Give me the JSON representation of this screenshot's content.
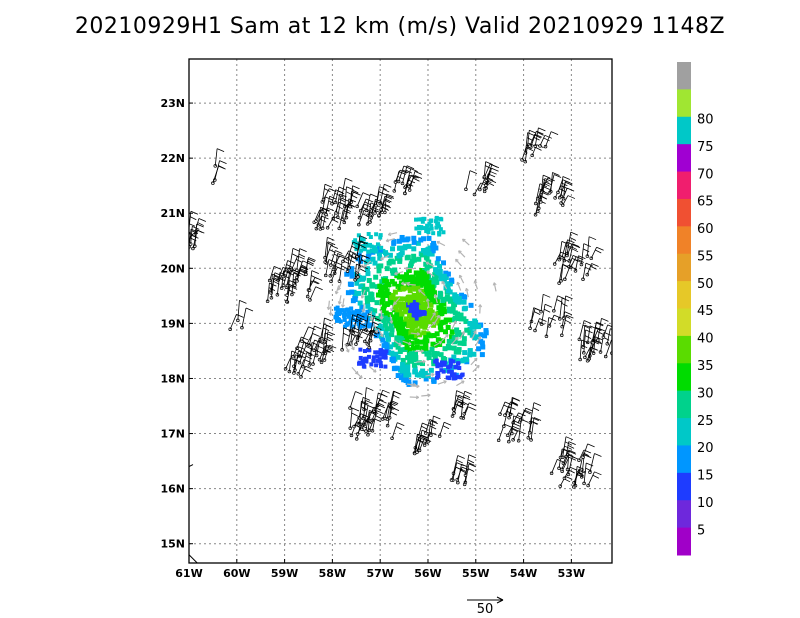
{
  "title": "20210929H1 Sam at 12 km (m/s) Valid 20210929 1148Z",
  "map": {
    "lat_labels": [
      "23N",
      "22N",
      "21N",
      "20N",
      "19N",
      "18N",
      "17N",
      "16N",
      "15N"
    ],
    "lat_values": [
      23,
      22,
      21,
      20,
      19,
      18,
      17,
      16,
      15
    ],
    "lon_labels": [
      "61W",
      "60W",
      "59W",
      "58W",
      "57W",
      "56W",
      "55W",
      "54W",
      "53W"
    ],
    "lon_values": [
      -61,
      -60,
      -59,
      -58,
      -57,
      -56,
      -55,
      -54,
      -53
    ],
    "lon_range": [
      -61,
      -52.15
    ],
    "lat_range": [
      14.65,
      23.8
    ],
    "grid": "dotted"
  },
  "colorbar": {
    "labels": [
      "5",
      "10",
      "15",
      "20",
      "25",
      "30",
      "35",
      "40",
      "45",
      "50",
      "55",
      "60",
      "65",
      "70",
      "75",
      "80"
    ],
    "colors": [
      "#a000c8",
      "#6e28dc",
      "#1e3cff",
      "#0096ff",
      "#00c8c8",
      "#00d28c",
      "#00dc00",
      "#5adc00",
      "#d2dc28",
      "#e6c828",
      "#e6a028",
      "#f08228",
      "#f05032",
      "#f01e6e",
      "#a000d2",
      "#00c8c8",
      "#a0e632",
      "#a0a0a0"
    ]
  },
  "scale_arrow": {
    "label": "50"
  }
}
